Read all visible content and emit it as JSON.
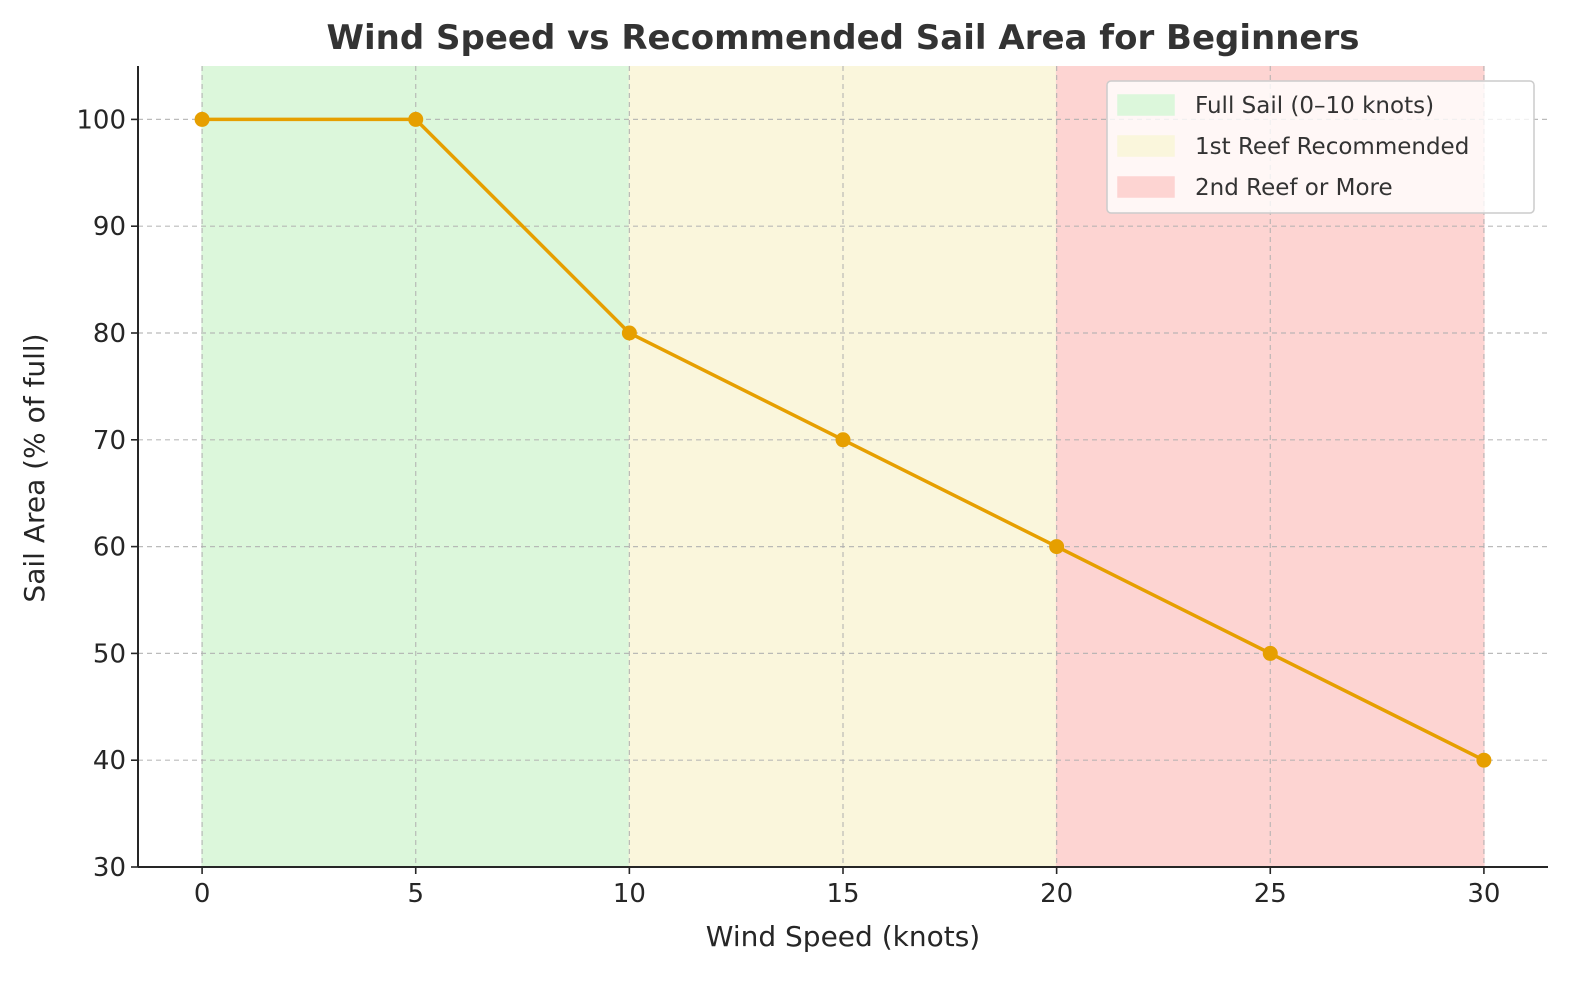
{
  "chart_data": {
    "type": "line",
    "title": "Wind Speed vs Recommended Sail Area for Beginners",
    "xlabel": "Wind Speed (knots)",
    "ylabel": "Sail Area (% of full)",
    "xlim": [
      -1.5,
      31.5
    ],
    "ylim": [
      30,
      105
    ],
    "xticks": [
      0,
      5,
      10,
      15,
      20,
      25,
      30
    ],
    "yticks": [
      30,
      40,
      50,
      60,
      70,
      80,
      90,
      100
    ],
    "grid": true,
    "legend_position": "top-right",
    "series": [
      {
        "color": "#e69f00",
        "x": [
          0,
          5,
          10,
          15,
          20,
          25,
          30
        ],
        "y": [
          100,
          100,
          80,
          70,
          60,
          50,
          40
        ]
      }
    ],
    "regions": [
      {
        "label": "Full Sail (0–10 knots)",
        "x_start": 0,
        "x_end": 10,
        "color": "#dcf7db"
      },
      {
        "label": "1st Reef Recommended",
        "x_start": 10,
        "x_end": 20,
        "color": "#faf6dc"
      },
      {
        "label": "2nd Reef or More",
        "x_start": 20,
        "x_end": 30,
        "color": "#fdd4d2"
      }
    ]
  }
}
